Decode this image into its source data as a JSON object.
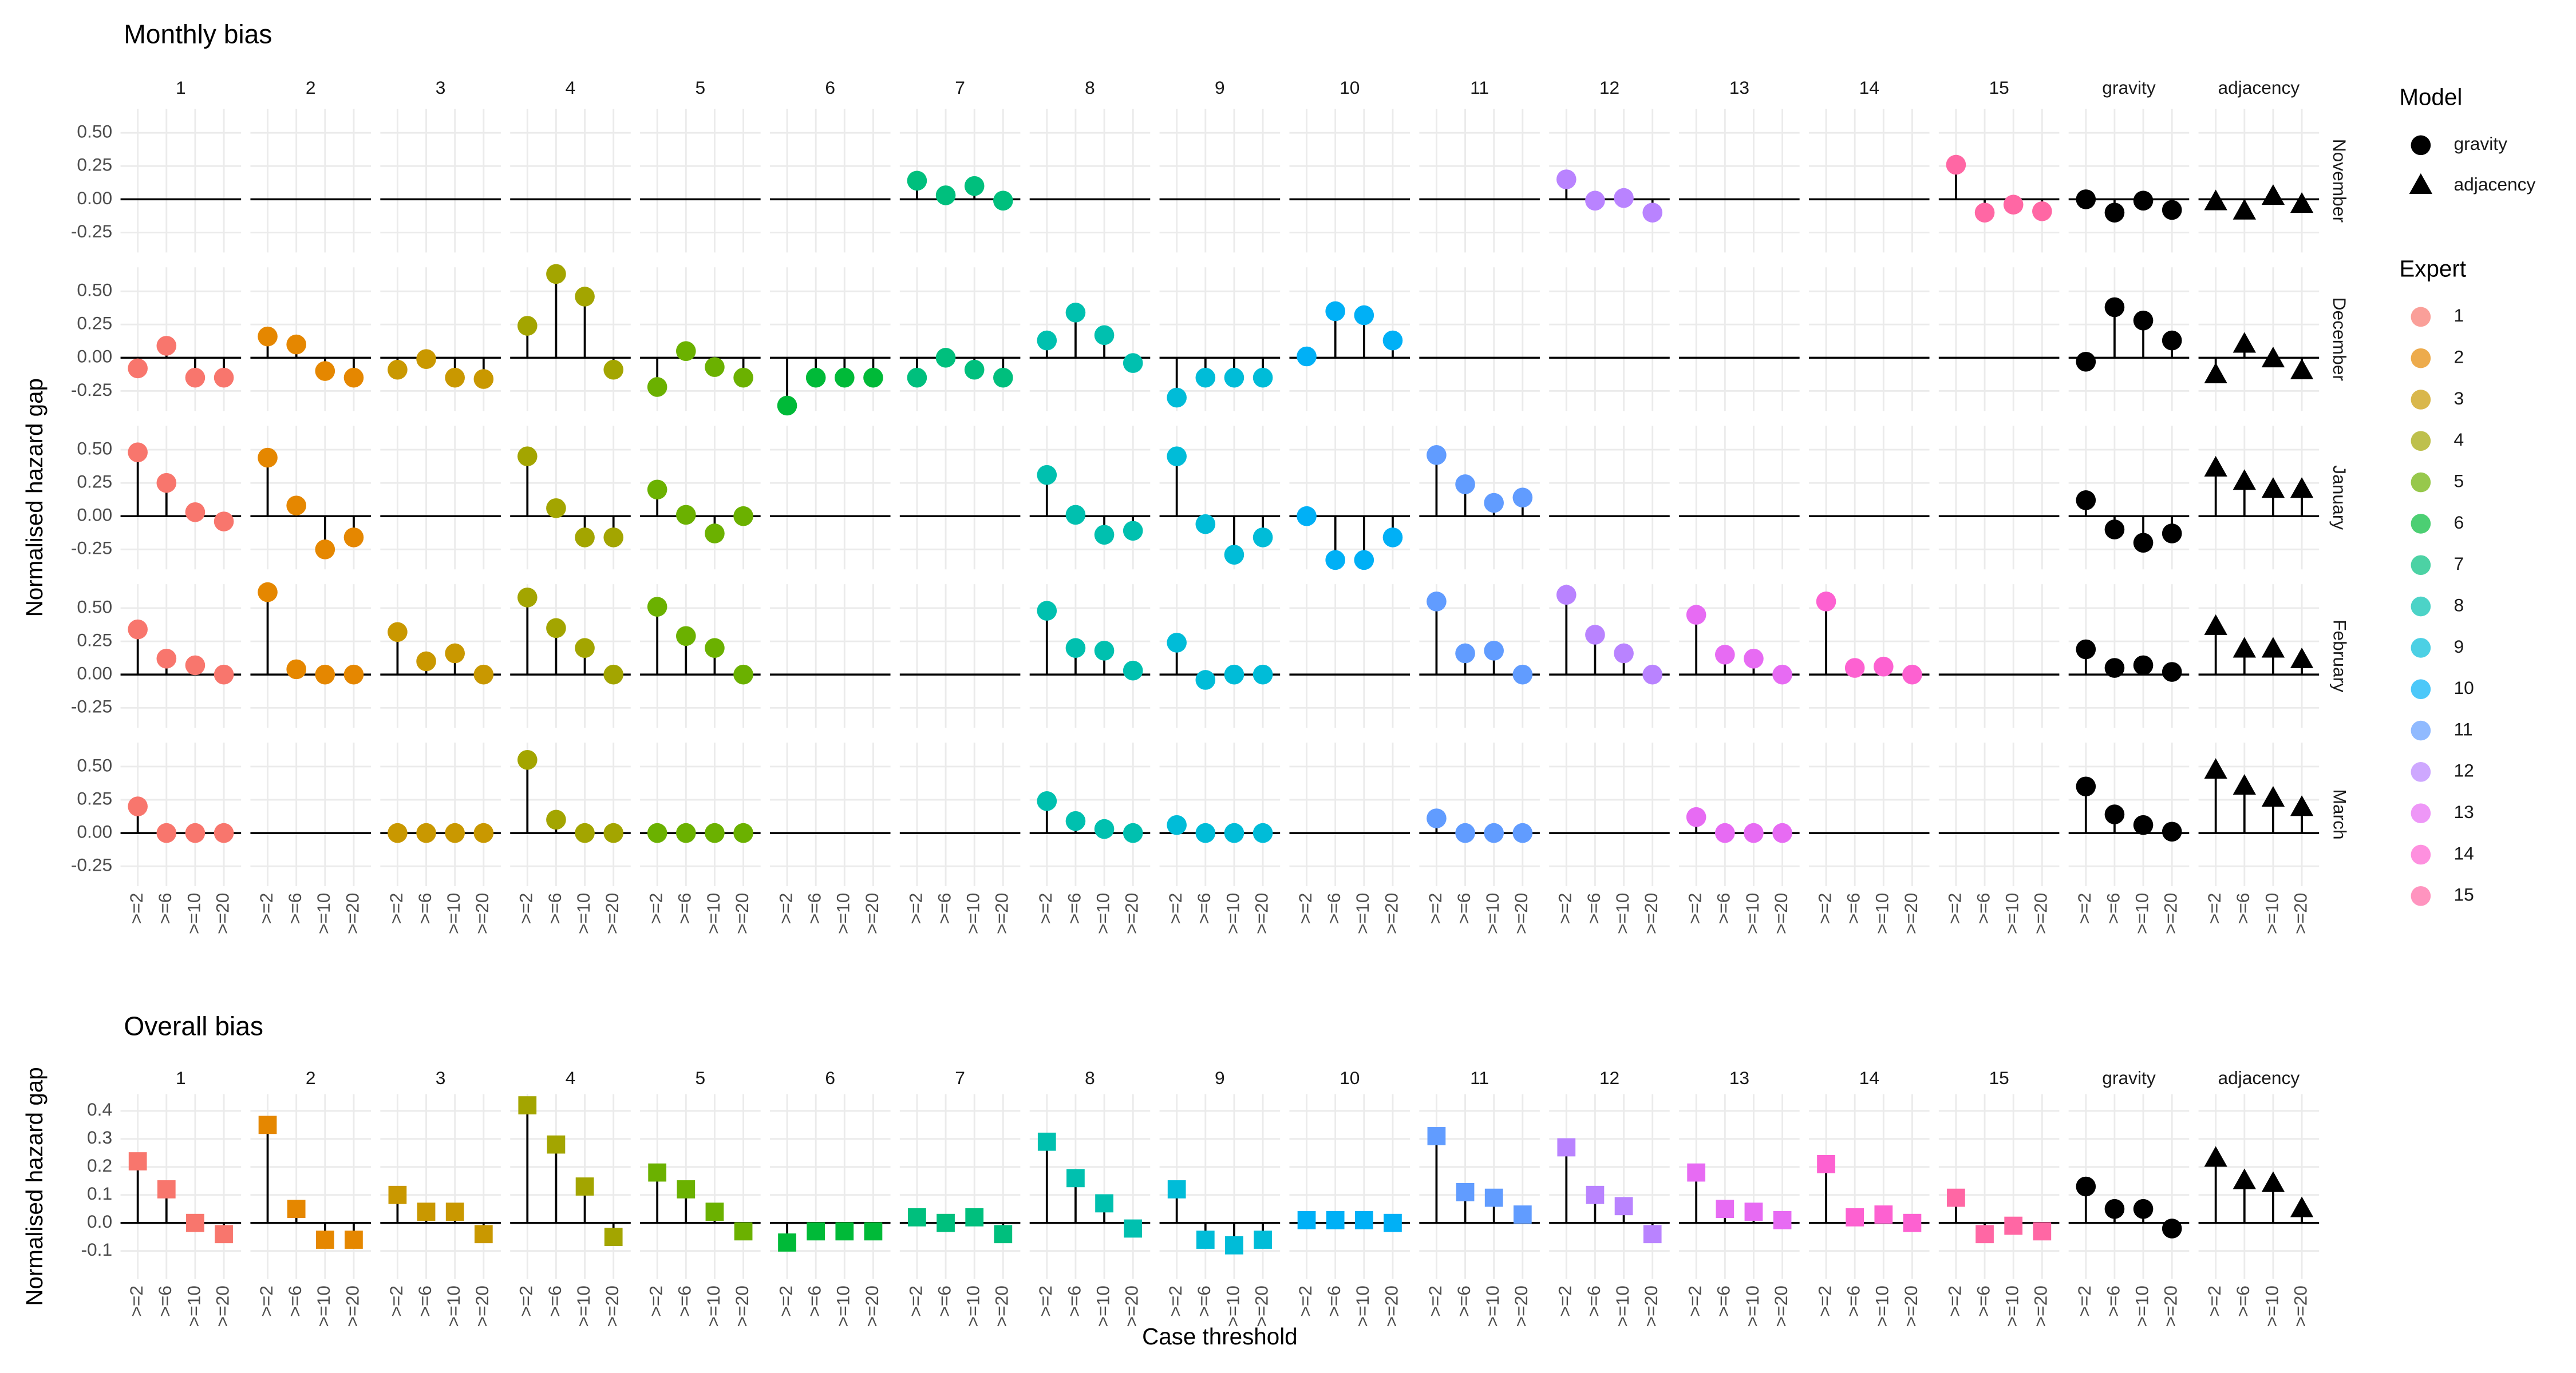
{
  "chart_data": [
    {
      "type": "lollipop",
      "title": "Monthly bias",
      "y_label": "Normalised hazard gap",
      "categories": [
        ">=2",
        ">=6",
        ">=10",
        ">=20"
      ],
      "rows": [
        "November",
        "December",
        "January",
        "February",
        "March"
      ],
      "ylim": [
        -0.4,
        0.68
      ],
      "yticks": [
        -0.25,
        {
          "value": 0,
          "label": "0.00"
        },
        0.25,
        {
          "value": 0.5,
          "label": "0.50"
        }
      ],
      "grid": true,
      "legend": {
        "position": "right",
        "model_title": "Model",
        "expert_title": "Expert"
      },
      "series": [
        {
          "name": "1",
          "color": "#F8766D",
          "shape": "circle",
          "values": [
            null,
            [
              -0.08,
              0.09,
              -0.15,
              -0.15
            ],
            [
              0.48,
              0.25,
              0.03,
              -0.04
            ],
            [
              0.34,
              0.12,
              0.07,
              0
            ],
            [
              0.2,
              0,
              0,
              0
            ]
          ]
        },
        {
          "name": "2",
          "color": "#E58700",
          "shape": "circle",
          "values": [
            null,
            [
              0.16,
              0.1,
              -0.1,
              -0.15
            ],
            [
              0.44,
              0.08,
              -0.25,
              -0.16
            ],
            [
              0.62,
              0.04,
              0,
              0
            ],
            null
          ]
        },
        {
          "name": "3",
          "color": "#C99800",
          "shape": "circle",
          "values": [
            null,
            [
              -0.09,
              -0.01,
              -0.15,
              -0.16
            ],
            null,
            [
              0.32,
              0.1,
              0.16,
              0
            ],
            [
              0,
              0,
              0,
              0
            ]
          ]
        },
        {
          "name": "4",
          "color": "#A3A500",
          "shape": "circle",
          "values": [
            null,
            [
              0.24,
              0.63,
              0.46,
              -0.09
            ],
            [
              0.45,
              0.06,
              -0.16,
              -0.16
            ],
            [
              0.58,
              0.35,
              0.2,
              0
            ],
            [
              0.55,
              0.1,
              0,
              0
            ]
          ]
        },
        {
          "name": "5",
          "color": "#6BB100",
          "shape": "circle",
          "values": [
            null,
            [
              -0.22,
              0.05,
              -0.07,
              -0.15
            ],
            [
              0.2,
              0.01,
              -0.13,
              0
            ],
            [
              0.51,
              0.29,
              0.2,
              0
            ],
            [
              0,
              0,
              0,
              0
            ]
          ]
        },
        {
          "name": "6",
          "color": "#00BA38",
          "shape": "circle",
          "values": [
            null,
            [
              -0.36,
              -0.15,
              -0.15,
              -0.15
            ],
            null,
            null,
            null
          ]
        },
        {
          "name": "7",
          "color": "#00BF7D",
          "shape": "circle",
          "values": [
            [
              0.14,
              0.03,
              0.1,
              -0.01
            ],
            [
              -0.15,
              0,
              -0.09,
              -0.15
            ],
            null,
            null,
            null
          ]
        },
        {
          "name": "8",
          "color": "#00C0AF",
          "shape": "circle",
          "values": [
            null,
            [
              0.13,
              0.34,
              0.17,
              -0.04
            ],
            [
              0.31,
              0.01,
              -0.14,
              -0.11
            ],
            [
              0.48,
              0.2,
              0.18,
              0.03
            ],
            [
              0.24,
              0.09,
              0.03,
              0
            ]
          ]
        },
        {
          "name": "9",
          "color": "#00BCD8",
          "shape": "circle",
          "values": [
            null,
            [
              -0.3,
              -0.15,
              -0.15,
              -0.15
            ],
            [
              0.45,
              -0.06,
              -0.29,
              -0.16
            ],
            [
              0.24,
              -0.04,
              0,
              0
            ],
            [
              0.06,
              0,
              0,
              0
            ]
          ]
        },
        {
          "name": "10",
          "color": "#00B0F6",
          "shape": "circle",
          "values": [
            null,
            [
              0.01,
              0.35,
              0.32,
              0.13
            ],
            [
              0,
              -0.33,
              -0.33,
              -0.16
            ],
            null,
            null
          ]
        },
        {
          "name": "11",
          "color": "#619CFF",
          "shape": "circle",
          "values": [
            null,
            null,
            [
              0.46,
              0.24,
              0.1,
              0.14
            ],
            [
              0.55,
              0.16,
              0.18,
              0
            ],
            [
              0.11,
              0,
              0,
              0
            ]
          ]
        },
        {
          "name": "12",
          "color": "#B983FF",
          "shape": "circle",
          "values": [
            [
              0.15,
              -0.01,
              0.01,
              -0.1
            ],
            null,
            null,
            [
              0.6,
              0.3,
              0.16,
              0
            ],
            null
          ]
        },
        {
          "name": "13",
          "color": "#E76BF3",
          "shape": "circle",
          "values": [
            null,
            null,
            null,
            [
              0.45,
              0.15,
              0.12,
              0
            ],
            [
              0.12,
              0,
              0,
              0
            ]
          ]
        },
        {
          "name": "14",
          "color": "#FD61D1",
          "shape": "circle",
          "values": [
            null,
            null,
            null,
            [
              0.55,
              0.05,
              0.06,
              0
            ],
            null
          ]
        },
        {
          "name": "15",
          "color": "#FF67A4",
          "shape": "circle",
          "values": [
            [
              0.26,
              -0.1,
              -0.04,
              -0.09
            ],
            null,
            null,
            null,
            null
          ]
        },
        {
          "name": "gravity",
          "color": "#000000",
          "shape": "circle",
          "values": [
            [
              0,
              -0.1,
              -0.01,
              -0.08
            ],
            [
              -0.03,
              0.38,
              0.28,
              0.13
            ],
            [
              0.12,
              -0.1,
              -0.2,
              -0.13
            ],
            [
              0.19,
              0.05,
              0.07,
              0.02
            ],
            [
              0.35,
              0.14,
              0.06,
              0.01
            ]
          ]
        },
        {
          "name": "adjacency",
          "color": "#000000",
          "shape": "triangle",
          "values": [
            [
              -0.02,
              -0.09,
              0.02,
              -0.04
            ],
            [
              -0.13,
              0.1,
              -0.01,
              -0.1
            ],
            [
              0.36,
              0.26,
              0.2,
              0.2
            ],
            [
              0.36,
              0.19,
              0.19,
              0.11
            ],
            [
              0.47,
              0.35,
              0.26,
              0.19
            ]
          ]
        }
      ]
    },
    {
      "type": "lollipop",
      "title": "Overall bias",
      "y_label": "Normalised hazard gap",
      "x_label": "Case threshold",
      "categories": [
        ">=2",
        ">=6",
        ">=10",
        ">=20"
      ],
      "ylim": [
        -0.2,
        0.46
      ],
      "yticks": [
        -0.1,
        {
          "value": 0,
          "label": "0.0"
        },
        0.1,
        0.2,
        0.3,
        0.4
      ],
      "grid": true,
      "series": [
        {
          "name": "1",
          "color": "#F8766D",
          "shape": "square",
          "values": [
            0.22,
            0.12,
            0,
            -0.04
          ]
        },
        {
          "name": "2",
          "color": "#E58700",
          "shape": "square",
          "values": [
            0.35,
            0.05,
            -0.06,
            -0.06
          ]
        },
        {
          "name": "3",
          "color": "#C99800",
          "shape": "square",
          "values": [
            0.1,
            0.04,
            0.04,
            -0.04
          ]
        },
        {
          "name": "4",
          "color": "#A3A500",
          "shape": "square",
          "values": [
            0.42,
            0.28,
            0.13,
            -0.05
          ]
        },
        {
          "name": "5",
          "color": "#6BB100",
          "shape": "square",
          "values": [
            0.18,
            0.12,
            0.04,
            -0.03
          ]
        },
        {
          "name": "6",
          "color": "#00BA38",
          "shape": "square",
          "values": [
            -0.07,
            -0.03,
            -0.03,
            -0.03
          ]
        },
        {
          "name": "7",
          "color": "#00BF7D",
          "shape": "square",
          "values": [
            0.02,
            0,
            0.02,
            -0.04
          ]
        },
        {
          "name": "8",
          "color": "#00C0AF",
          "shape": "square",
          "values": [
            0.29,
            0.16,
            0.07,
            -0.02
          ]
        },
        {
          "name": "9",
          "color": "#00BCD8",
          "shape": "square",
          "values": [
            0.12,
            -0.06,
            -0.08,
            -0.06
          ]
        },
        {
          "name": "10",
          "color": "#00B0F6",
          "shape": "square",
          "values": [
            0.01,
            0.01,
            0.01,
            0
          ]
        },
        {
          "name": "11",
          "color": "#619CFF",
          "shape": "square",
          "values": [
            0.31,
            0.11,
            0.09,
            0.03
          ]
        },
        {
          "name": "12",
          "color": "#B983FF",
          "shape": "square",
          "values": [
            0.27,
            0.1,
            0.06,
            -0.04
          ]
        },
        {
          "name": "13",
          "color": "#E76BF3",
          "shape": "square",
          "values": [
            0.18,
            0.05,
            0.04,
            0.01
          ]
        },
        {
          "name": "14",
          "color": "#FD61D1",
          "shape": "square",
          "values": [
            0.21,
            0.02,
            0.03,
            0
          ]
        },
        {
          "name": "15",
          "color": "#FF67A4",
          "shape": "square",
          "values": [
            0.09,
            -0.04,
            -0.01,
            -0.03
          ]
        },
        {
          "name": "gravity",
          "color": "#000000",
          "shape": "circle",
          "values": [
            0.13,
            0.05,
            0.05,
            -0.02
          ]
        },
        {
          "name": "adjacency",
          "color": "#000000",
          "shape": "triangle",
          "values": [
            0.23,
            0.15,
            0.14,
            0.05
          ]
        }
      ]
    }
  ]
}
